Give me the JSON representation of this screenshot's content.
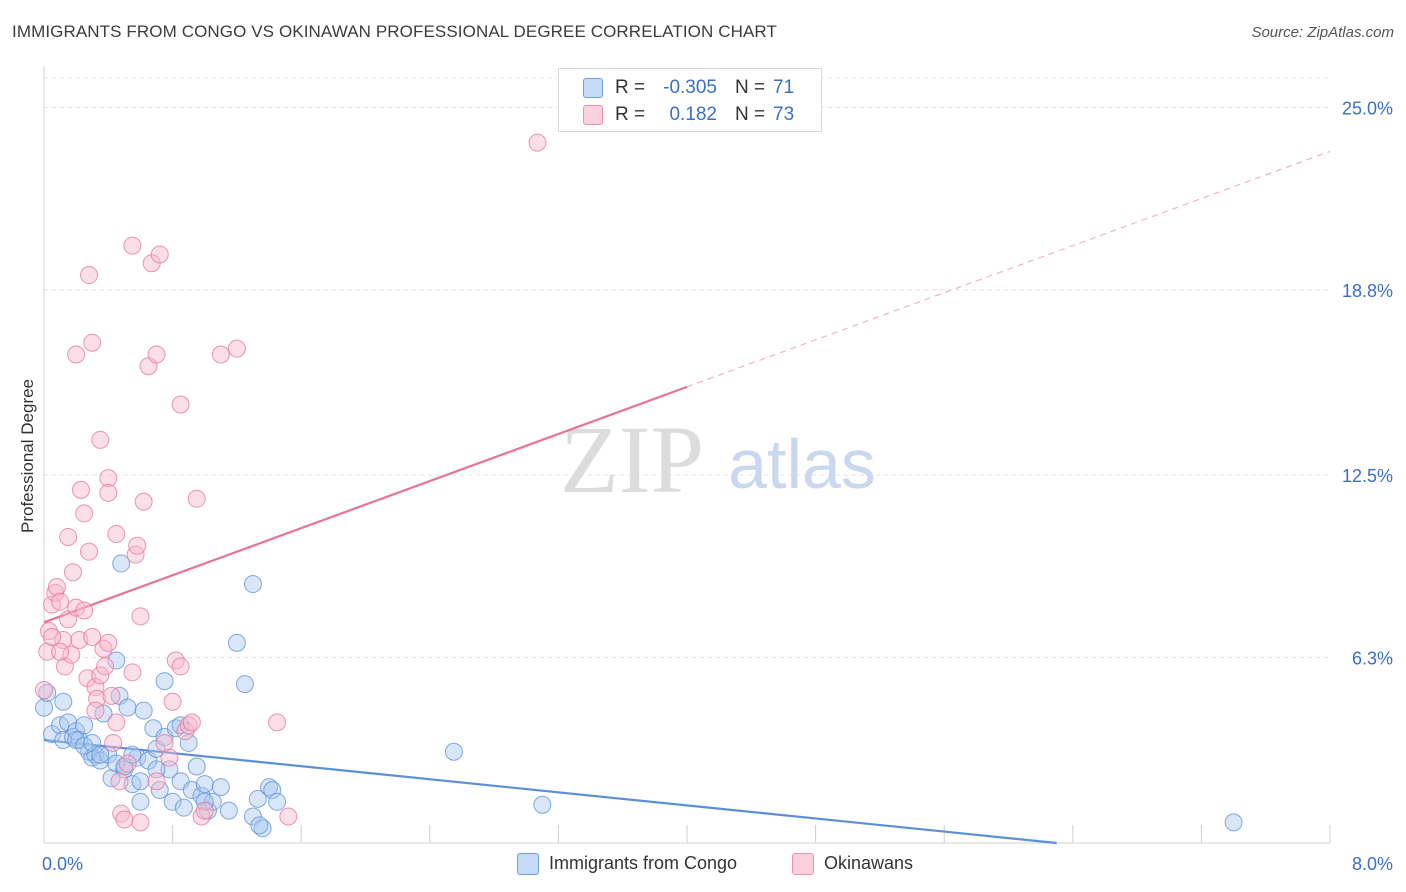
{
  "title": "IMMIGRANTS FROM CONGO VS OKINAWAN PROFESSIONAL DEGREE CORRELATION CHART",
  "source": "Source: ZipAtlas.com",
  "watermark": {
    "zip": "ZIP",
    "atlas": "atlas"
  },
  "stats": {
    "r_label": "R =",
    "n_label": "N =",
    "rows": [
      {
        "r": "-0.305",
        "n": "71",
        "color": "#a9c8f0"
      },
      {
        "r": "0.182",
        "n": "73",
        "color": "#f6b8cb"
      }
    ]
  },
  "chart_data": {
    "type": "scatter",
    "xlabel": "",
    "ylabel": "Professional Degree",
    "xlim": [
      0,
      8
    ],
    "ylim": [
      0,
      26.2
    ],
    "x_tick_labels": [
      {
        "value": 0,
        "label": "0.0%"
      },
      {
        "value": 8,
        "label": "8.0%"
      }
    ],
    "y_tick_labels": [
      {
        "value": 6.3,
        "label": "6.3%"
      },
      {
        "value": 12.5,
        "label": "12.5%"
      },
      {
        "value": 18.8,
        "label": "18.8%"
      },
      {
        "value": 25.0,
        "label": "25.0%"
      }
    ],
    "grid": true,
    "series": [
      {
        "name": "Immigrants from Congo",
        "color": "#5b8fd6",
        "fill": "#a9c8f0",
        "r": -0.305,
        "n": 71,
        "trend": {
          "x0": 0,
          "y0": 3.5,
          "x1": 6.3,
          "y1": 0.0,
          "solid_until": 6.3
        },
        "points": [
          [
            0.0,
            4.6
          ],
          [
            0.05,
            3.7
          ],
          [
            0.1,
            4.0
          ],
          [
            0.12,
            3.5
          ],
          [
            0.15,
            4.1
          ],
          [
            0.18,
            3.6
          ],
          [
            0.2,
            3.8
          ],
          [
            0.22,
            3.5
          ],
          [
            0.25,
            4.0
          ],
          [
            0.28,
            3.1
          ],
          [
            0.3,
            2.9
          ],
          [
            0.32,
            3.0
          ],
          [
            0.35,
            2.8
          ],
          [
            0.37,
            4.4
          ],
          [
            0.4,
            3.0
          ],
          [
            0.42,
            2.2
          ],
          [
            0.45,
            2.7
          ],
          [
            0.47,
            5.0
          ],
          [
            0.5,
            2.5
          ],
          [
            0.52,
            4.6
          ],
          [
            0.55,
            2.0
          ],
          [
            0.58,
            2.9
          ],
          [
            0.6,
            1.4
          ],
          [
            0.62,
            4.5
          ],
          [
            0.65,
            2.8
          ],
          [
            0.68,
            3.9
          ],
          [
            0.7,
            3.2
          ],
          [
            0.72,
            1.8
          ],
          [
            0.75,
            3.6
          ],
          [
            0.78,
            2.5
          ],
          [
            0.8,
            1.4
          ],
          [
            0.82,
            3.9
          ],
          [
            0.85,
            2.1
          ],
          [
            0.87,
            1.2
          ],
          [
            0.9,
            3.4
          ],
          [
            0.92,
            1.8
          ],
          [
            0.95,
            2.6
          ],
          [
            0.98,
            1.6
          ],
          [
            1.0,
            2.0
          ],
          [
            1.02,
            1.1
          ],
          [
            1.05,
            1.4
          ],
          [
            1.1,
            1.9
          ],
          [
            1.15,
            1.1
          ],
          [
            1.2,
            6.8
          ],
          [
            1.25,
            5.4
          ],
          [
            1.3,
            0.9
          ],
          [
            1.33,
            1.5
          ],
          [
            1.36,
            0.5
          ],
          [
            1.4,
            1.9
          ],
          [
            1.42,
            1.8
          ],
          [
            1.45,
            1.4
          ],
          [
            1.0,
            1.4
          ],
          [
            0.7,
            2.5
          ],
          [
            0.6,
            2.1
          ],
          [
            0.5,
            2.6
          ],
          [
            0.45,
            6.2
          ],
          [
            0.48,
            9.5
          ],
          [
            1.3,
            8.8
          ],
          [
            0.2,
            3.5
          ],
          [
            0.25,
            3.3
          ],
          [
            0.3,
            3.4
          ],
          [
            0.35,
            3.0
          ],
          [
            0.55,
            3.0
          ],
          [
            0.75,
            5.5
          ],
          [
            0.85,
            4.0
          ],
          [
            2.55,
            3.1
          ],
          [
            3.1,
            1.3
          ],
          [
            7.4,
            0.7
          ],
          [
            1.34,
            0.6
          ],
          [
            0.12,
            4.8
          ],
          [
            0.02,
            5.1
          ]
        ]
      },
      {
        "name": "Okinawans",
        "color": "#e8729d",
        "fill": "#f6b8cb",
        "r": 0.182,
        "n": 73,
        "trend": {
          "x0": 0,
          "y0": 7.5,
          "x1": 8,
          "y1": 23.5,
          "solid_until": 4.0
        },
        "points": [
          [
            0.0,
            5.2
          ],
          [
            0.02,
            6.5
          ],
          [
            0.03,
            7.2
          ],
          [
            0.05,
            8.1
          ],
          [
            0.07,
            8.5
          ],
          [
            0.08,
            8.7
          ],
          [
            0.1,
            8.2
          ],
          [
            0.12,
            6.9
          ],
          [
            0.13,
            6.0
          ],
          [
            0.15,
            7.6
          ],
          [
            0.17,
            6.4
          ],
          [
            0.18,
            9.2
          ],
          [
            0.2,
            8.0
          ],
          [
            0.22,
            6.9
          ],
          [
            0.23,
            12.0
          ],
          [
            0.25,
            11.2
          ],
          [
            0.27,
            5.6
          ],
          [
            0.28,
            9.9
          ],
          [
            0.3,
            7.0
          ],
          [
            0.32,
            5.3
          ],
          [
            0.33,
            4.9
          ],
          [
            0.35,
            5.7
          ],
          [
            0.37,
            6.6
          ],
          [
            0.38,
            6.0
          ],
          [
            0.4,
            6.8
          ],
          [
            0.42,
            5.0
          ],
          [
            0.43,
            3.4
          ],
          [
            0.45,
            4.1
          ],
          [
            0.47,
            2.1
          ],
          [
            0.48,
            1.0
          ],
          [
            0.5,
            0.8
          ],
          [
            0.52,
            2.7
          ],
          [
            0.55,
            5.8
          ],
          [
            0.57,
            9.8
          ],
          [
            0.58,
            10.1
          ],
          [
            0.6,
            7.7
          ],
          [
            0.62,
            11.6
          ],
          [
            0.65,
            16.2
          ],
          [
            0.67,
            19.7
          ],
          [
            0.7,
            16.6
          ],
          [
            0.72,
            20.0
          ],
          [
            0.75,
            3.4
          ],
          [
            0.78,
            2.9
          ],
          [
            0.8,
            4.8
          ],
          [
            0.82,
            6.2
          ],
          [
            0.85,
            6.0
          ],
          [
            0.88,
            3.8
          ],
          [
            0.9,
            4.0
          ],
          [
            0.92,
            4.1
          ],
          [
            0.95,
            11.7
          ],
          [
            0.98,
            0.9
          ],
          [
            1.0,
            1.1
          ],
          [
            1.1,
            16.6
          ],
          [
            1.2,
            16.8
          ],
          [
            1.45,
            4.1
          ],
          [
            1.52,
            0.9
          ],
          [
            0.35,
            13.7
          ],
          [
            0.4,
            12.4
          ],
          [
            0.45,
            10.5
          ],
          [
            0.3,
            17.0
          ],
          [
            0.2,
            16.6
          ],
          [
            0.28,
            19.3
          ],
          [
            0.55,
            20.3
          ],
          [
            0.85,
            14.9
          ],
          [
            0.15,
            10.4
          ],
          [
            0.25,
            7.9
          ],
          [
            0.1,
            6.5
          ],
          [
            0.4,
            11.9
          ],
          [
            0.32,
            4.5
          ],
          [
            0.6,
            0.7
          ],
          [
            0.7,
            2.1
          ],
          [
            0.05,
            7.0
          ],
          [
            3.07,
            23.8
          ]
        ]
      }
    ]
  },
  "legend": {
    "items": [
      "Immigrants from Congo",
      "Okinawans"
    ]
  }
}
